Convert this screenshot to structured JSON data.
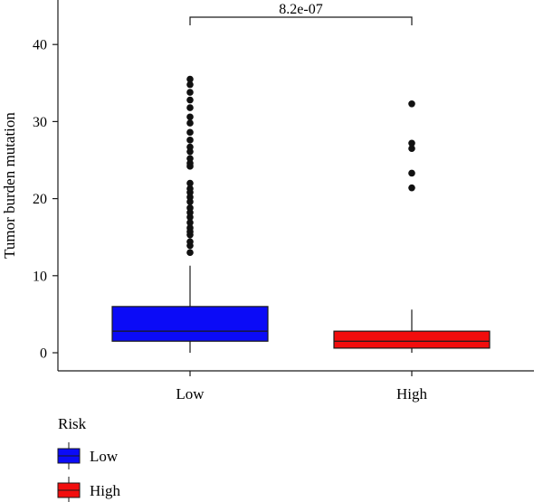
{
  "chart_data": {
    "type": "box",
    "title": "",
    "xlabel": "",
    "ylabel": "Tumor burden mutation",
    "ylim": [
      -2,
      47
    ],
    "yticks": [
      0,
      10,
      20,
      30,
      40
    ],
    "grid": false,
    "legend_placement": "bottom-left",
    "legend_title": "Risk",
    "annotation": "8.2e-07",
    "categories": [
      "Low",
      "High"
    ],
    "series": [
      {
        "name": "Low",
        "color": "#0b0bf7",
        "min": 0,
        "q1": 1.5,
        "median": 2.8,
        "q3": 6.0,
        "max": 11.3,
        "outliers": [
          13.0,
          13.9,
          14.4,
          15.3,
          15.7,
          16.2,
          16.9,
          17.6,
          18.2,
          18.8,
          19.6,
          20.2,
          20.8,
          21.3,
          22.0,
          24.2,
          24.6,
          25.2,
          26.1,
          26.7,
          27.6,
          28.6,
          29.8,
          30.6,
          31.8,
          32.8,
          33.8,
          34.8,
          35.5
        ]
      },
      {
        "name": "High",
        "color": "#f20d0d",
        "min": 0,
        "q1": 0.6,
        "median": 1.5,
        "q3": 2.8,
        "max": 5.6,
        "outliers": [
          21.4,
          23.3,
          26.5,
          27.2,
          32.3
        ]
      }
    ]
  }
}
